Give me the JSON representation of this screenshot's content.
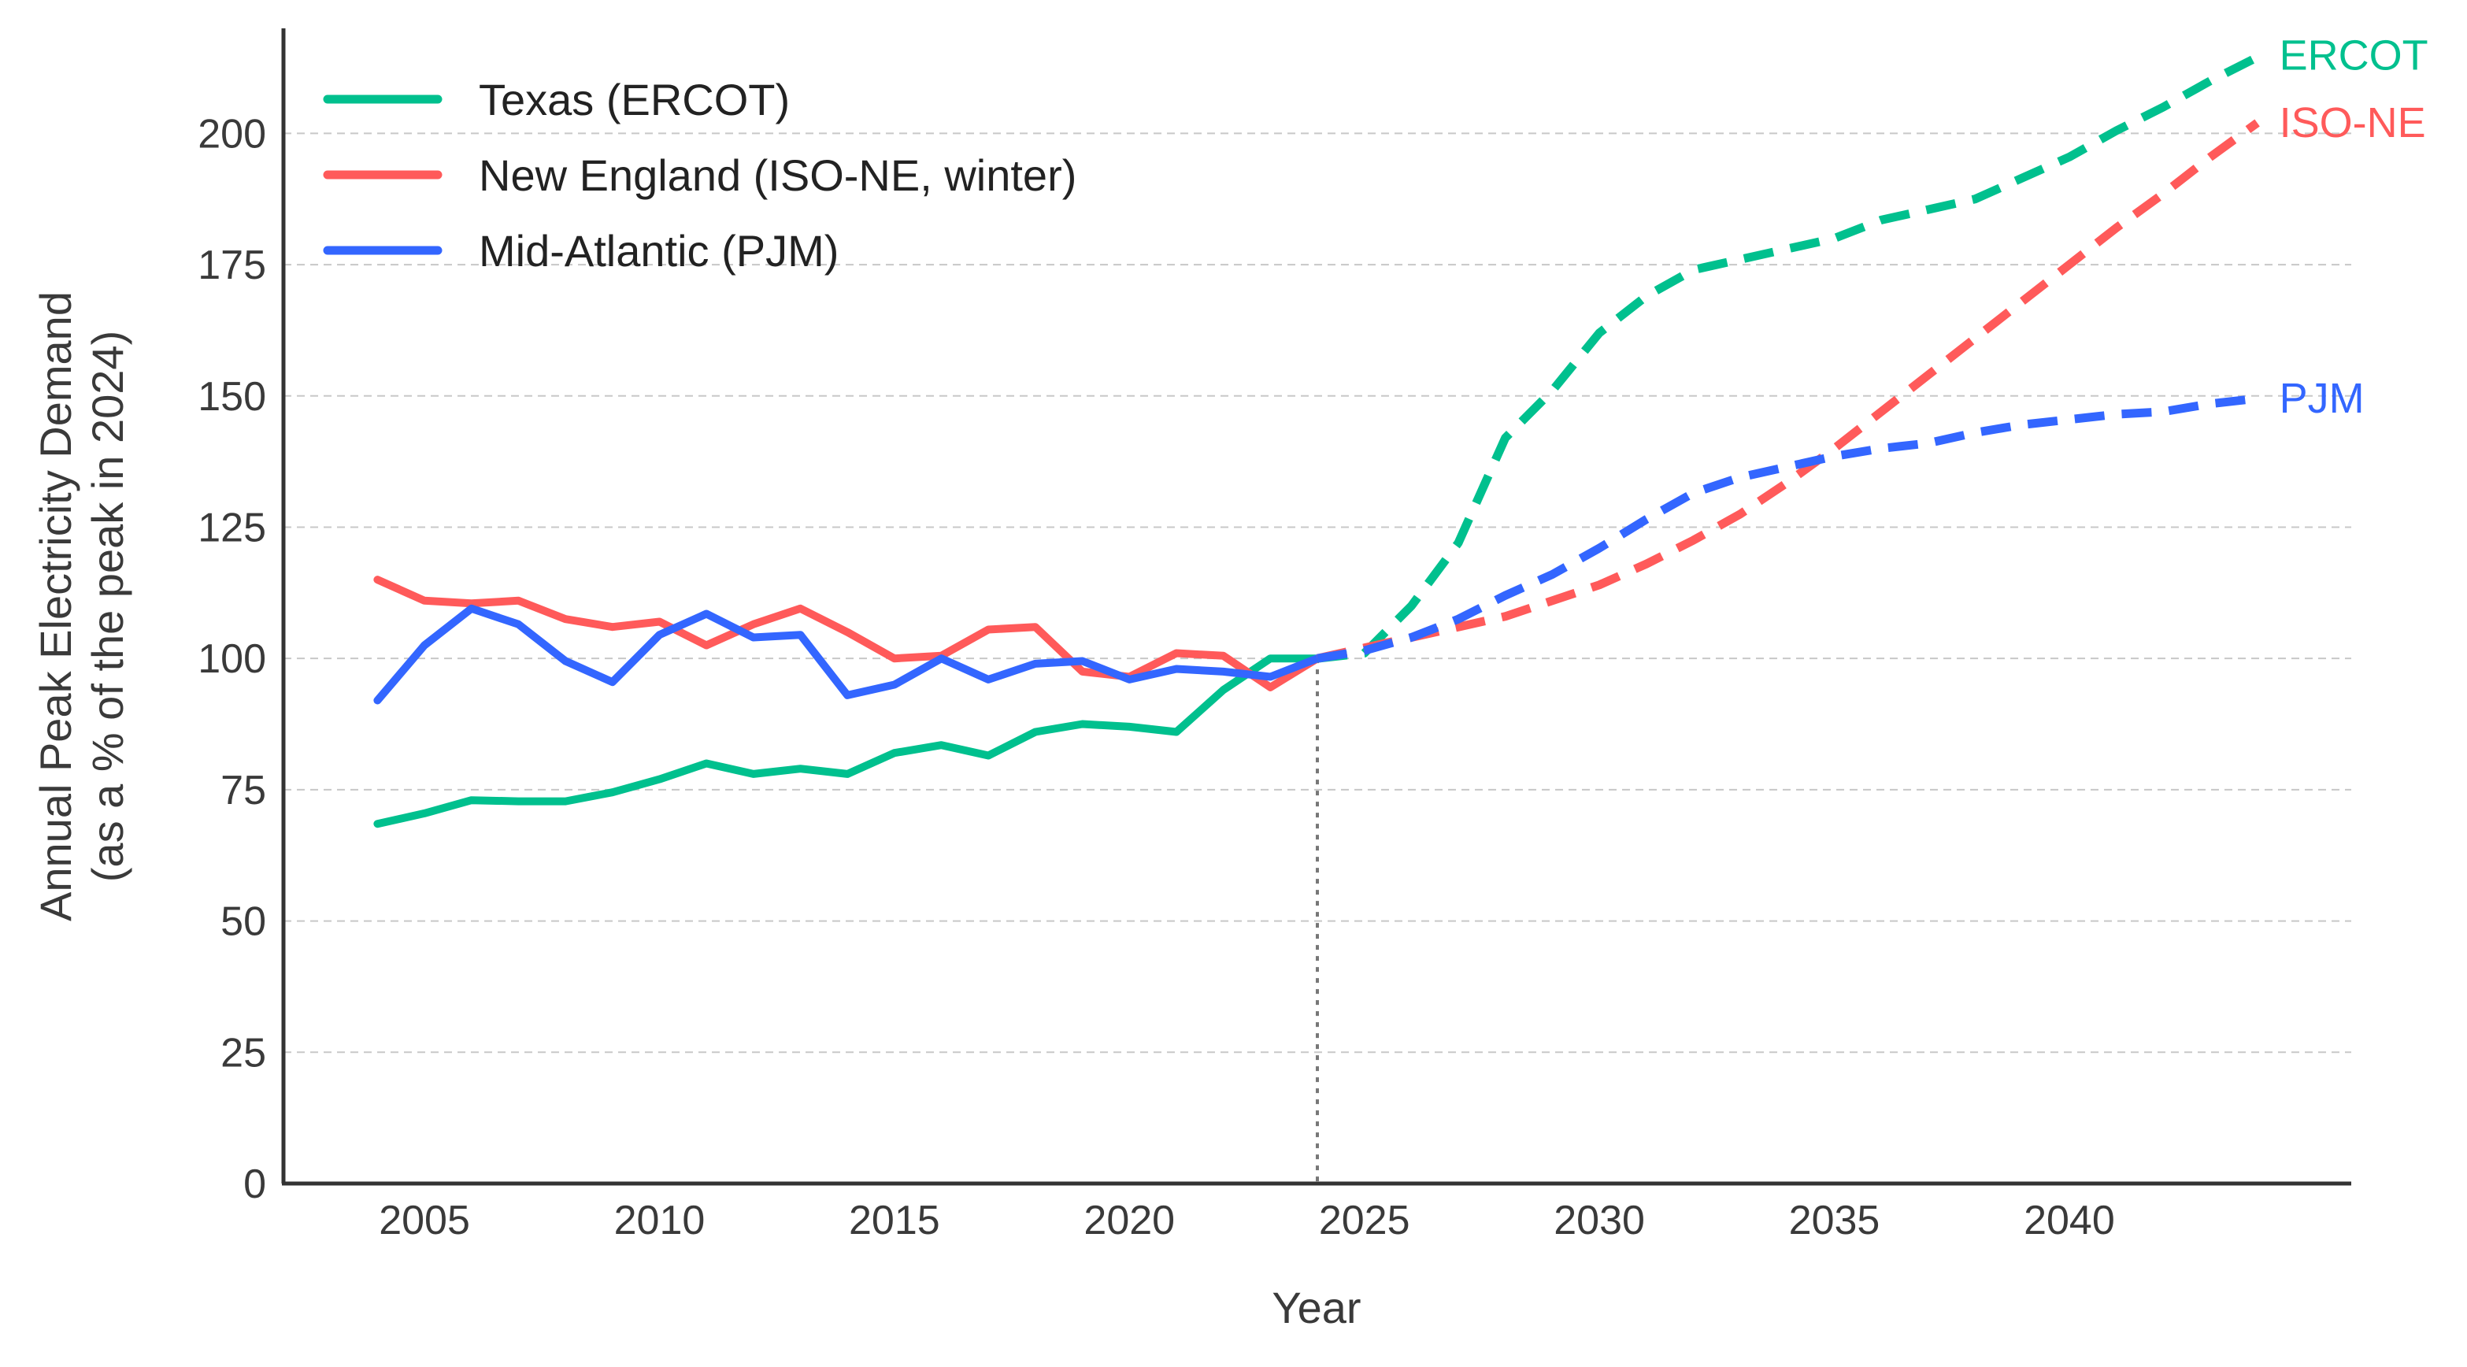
{
  "chart_data": {
    "type": "line",
    "title": "",
    "xlabel": "Year",
    "ylabel_line1": "Annual Peak Electricity Demand",
    "ylabel_line2": "(as a % of the peak in 2024)",
    "xlim": [
      2002,
      2046
    ],
    "ylim": [
      0,
      220
    ],
    "xticks": [
      2005,
      2010,
      2015,
      2020,
      2025,
      2030,
      2035,
      2040
    ],
    "yticks": [
      0,
      25,
      50,
      75,
      100,
      125,
      150,
      175,
      200
    ],
    "grid": "horizontal-dashed",
    "legend_position": "top-left",
    "forecast_start_year": 2024,
    "series": [
      {
        "name": "Texas (ERCOT)",
        "end_label": "ERCOT",
        "color": "#00c08e",
        "historical": {
          "x": [
            2004,
            2005,
            2006,
            2007,
            2008,
            2009,
            2010,
            2011,
            2012,
            2013,
            2014,
            2015,
            2016,
            2017,
            2018,
            2019,
            2020,
            2021,
            2022,
            2023,
            2024
          ],
          "y": [
            68.5,
            70.5,
            73,
            72.8,
            72.8,
            74.5,
            77,
            80,
            78,
            79,
            78,
            82,
            83.5,
            81.5,
            86,
            87.5,
            87,
            86,
            94,
            100,
            100
          ]
        },
        "forecast": {
          "x": [
            2024,
            2025,
            2026,
            2027,
            2028,
            2029,
            2030,
            2031,
            2032,
            2033,
            2034,
            2035,
            2036,
            2037,
            2038,
            2039,
            2040,
            2041,
            2042,
            2043,
            2044
          ],
          "y": [
            100,
            101,
            110,
            122,
            142,
            151,
            162,
            169,
            174,
            176,
            178,
            180,
            183.5,
            185.5,
            187.5,
            191.5,
            195.5,
            200.5,
            205,
            210,
            214.5
          ]
        }
      },
      {
        "name": "New England (ISO-NE, winter)",
        "end_label": "ISO-NE",
        "color": "#ff5a5a",
        "historical": {
          "x": [
            2004,
            2005,
            2006,
            2007,
            2008,
            2009,
            2010,
            2011,
            2012,
            2013,
            2014,
            2015,
            2016,
            2017,
            2018,
            2019,
            2020,
            2021,
            2022,
            2023,
            2024
          ],
          "y": [
            115,
            111,
            110.5,
            111,
            107.5,
            106,
            107,
            102.5,
            106.5,
            109.5,
            105,
            100,
            100.5,
            105.5,
            106,
            97.5,
            96.5,
            101,
            100.5,
            94.5,
            100
          ]
        },
        "forecast": {
          "x": [
            2024,
            2025,
            2026,
            2027,
            2028,
            2029,
            2030,
            2031,
            2032,
            2033,
            2034,
            2035,
            2036,
            2037,
            2038,
            2039,
            2040,
            2041,
            2042,
            2043,
            2044
          ],
          "y": [
            100,
            102,
            104,
            106,
            108,
            111,
            114,
            118,
            122.5,
            127.5,
            133.5,
            140,
            147,
            154,
            161,
            168,
            175,
            182,
            188.5,
            195.5,
            202
          ]
        }
      },
      {
        "name": "Mid-Atlantic (PJM)",
        "end_label": "PJM",
        "color": "#3366ff",
        "historical": {
          "x": [
            2004,
            2005,
            2006,
            2007,
            2008,
            2009,
            2010,
            2011,
            2012,
            2013,
            2014,
            2015,
            2016,
            2017,
            2018,
            2019,
            2020,
            2021,
            2022,
            2023,
            2024
          ],
          "y": [
            92,
            102.5,
            109.5,
            106.5,
            99.5,
            95.5,
            104.5,
            108.5,
            104,
            104.5,
            93,
            95,
            100,
            96,
            99,
            99.5,
            96,
            98,
            97.5,
            96.5,
            100
          ]
        },
        "forecast": {
          "x": [
            2024,
            2025,
            2026,
            2027,
            2028,
            2029,
            2030,
            2031,
            2032,
            2033,
            2034,
            2035,
            2036,
            2037,
            2038,
            2039,
            2040,
            2041,
            2042,
            2043,
            2044
          ],
          "y": [
            100,
            101.5,
            104,
            107.5,
            112,
            116,
            121,
            126.5,
            131.5,
            134.5,
            136.5,
            138.5,
            140,
            141,
            143,
            144.5,
            145.5,
            146.5,
            147,
            148.5,
            149.5
          ]
        }
      }
    ]
  }
}
